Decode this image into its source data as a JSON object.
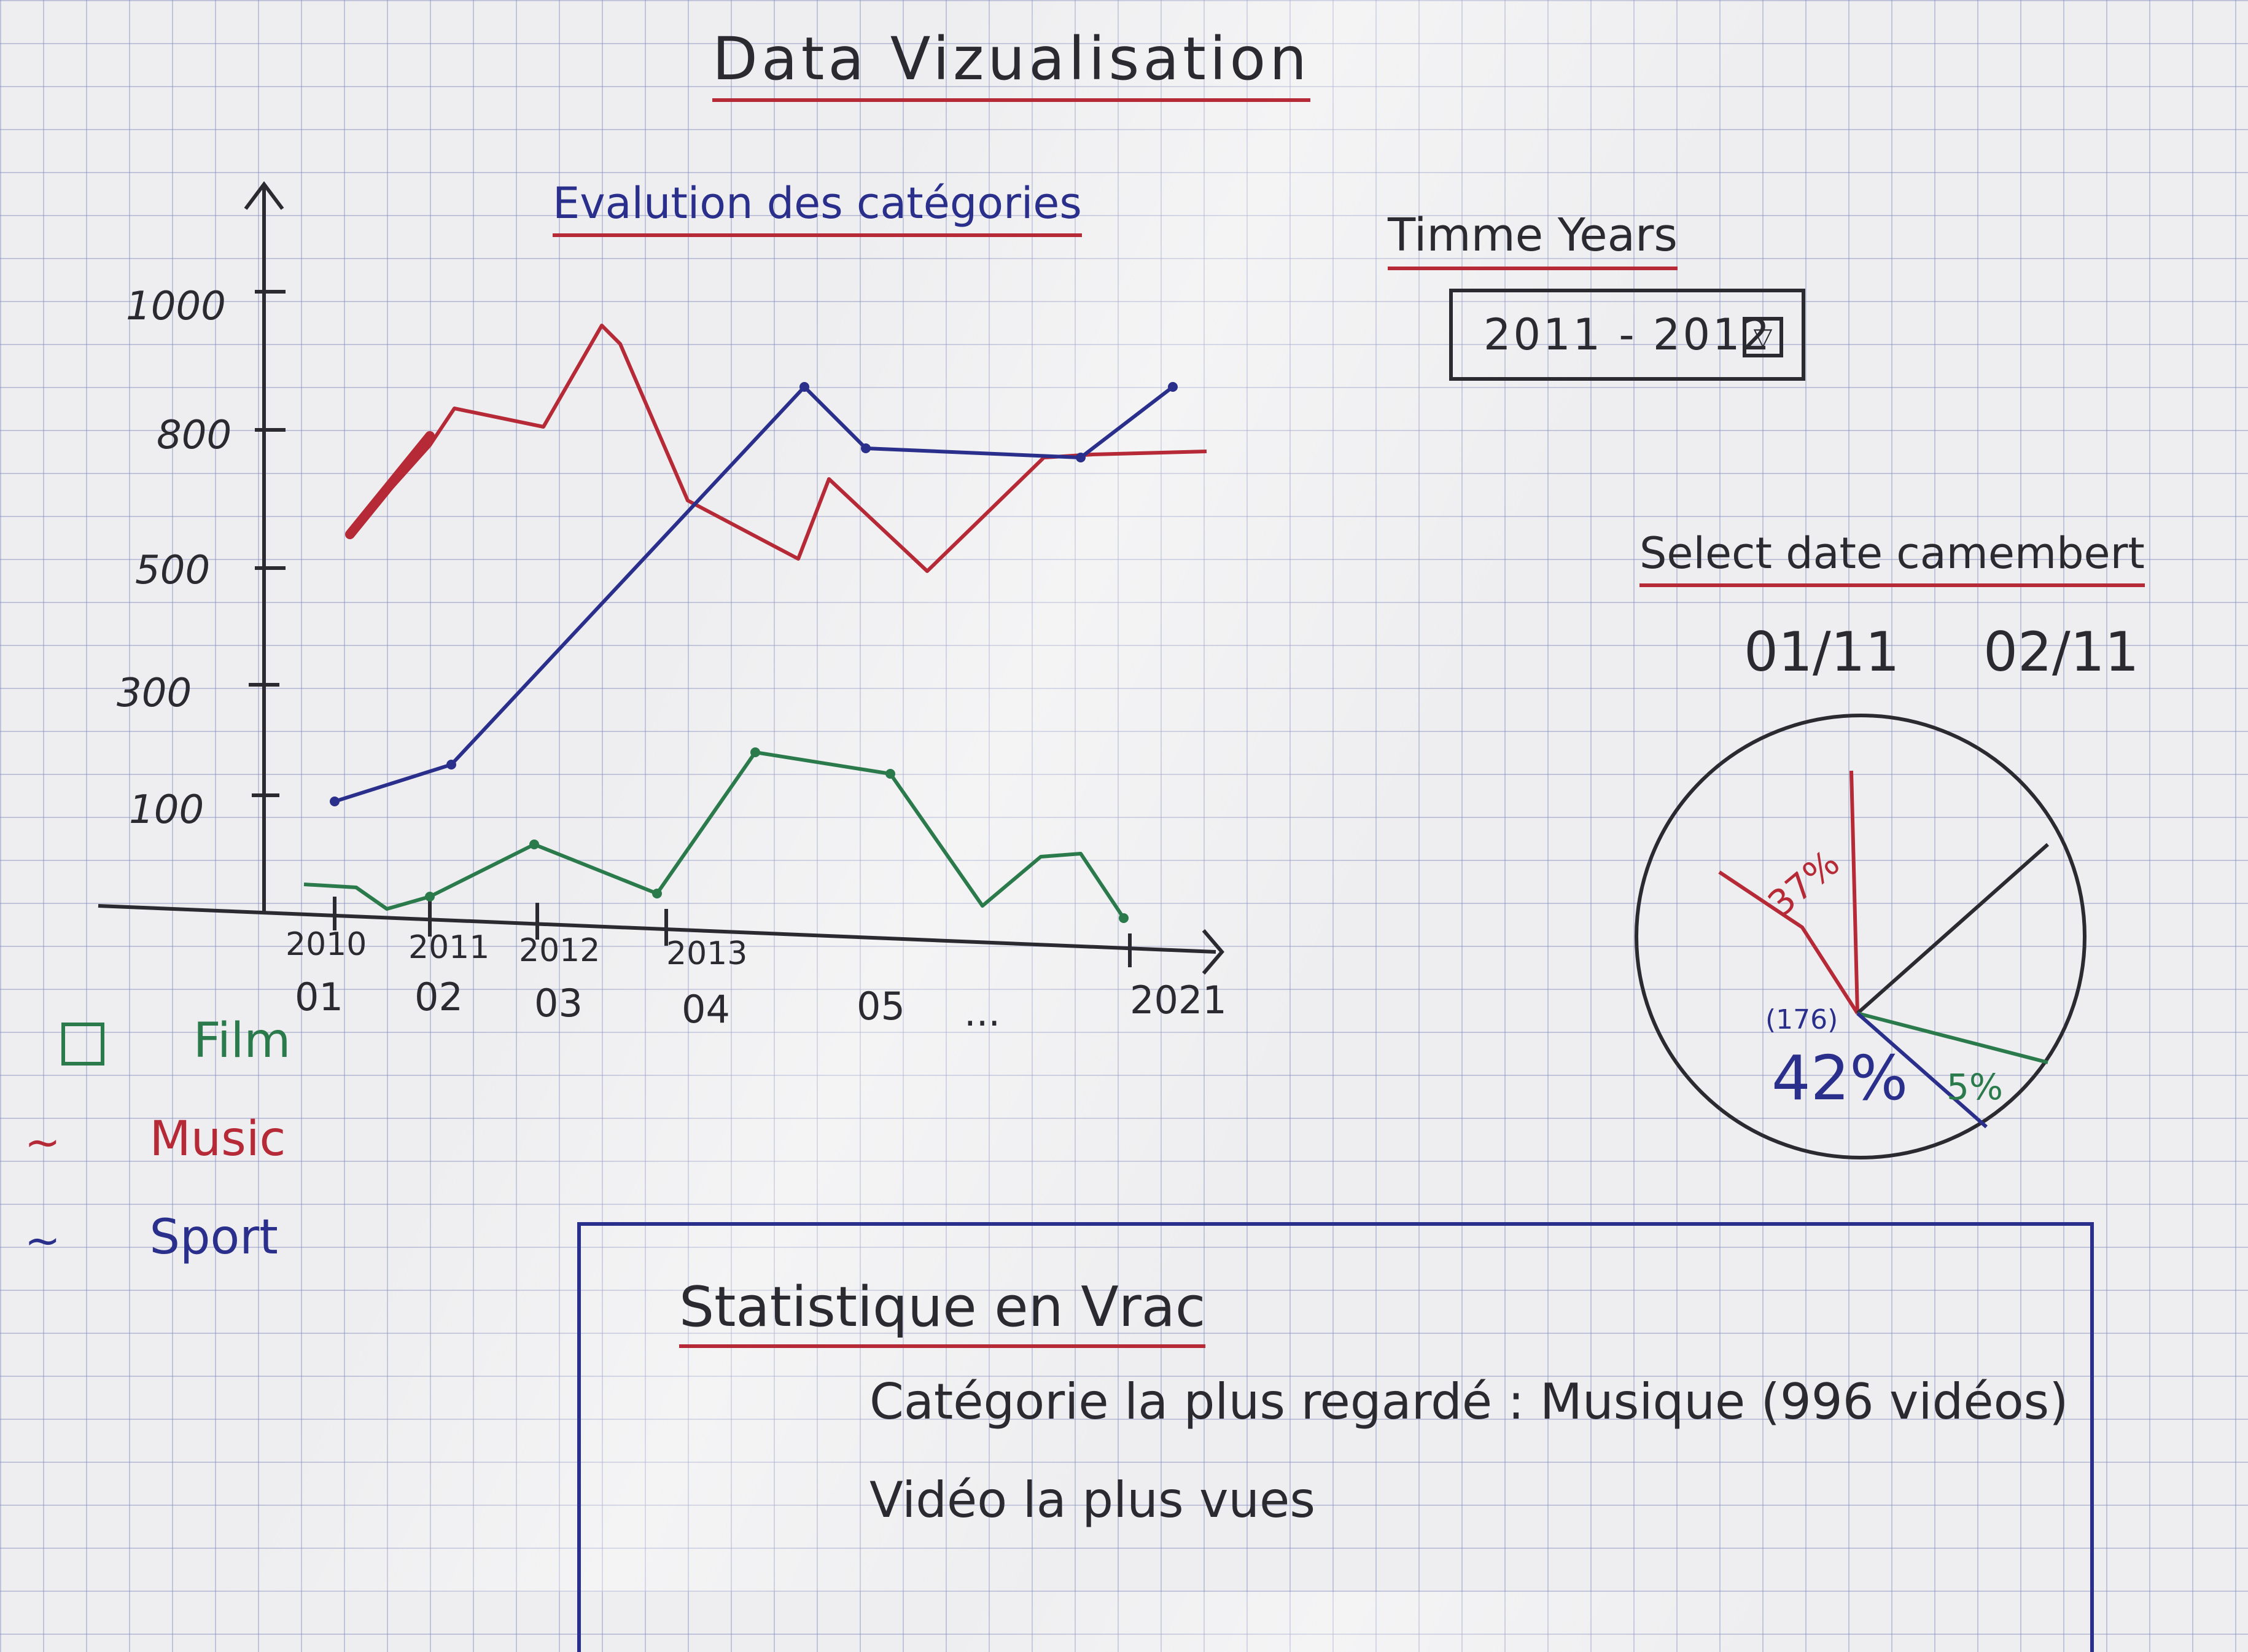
{
  "header": {
    "title": "Data Vizualisation"
  },
  "line_chart": {
    "title": "Evalution des catégories",
    "y_ticks": [
      "100",
      "300",
      "500",
      "800",
      "1000"
    ],
    "x_ticks": [
      {
        "top": "2010",
        "bottom": "01"
      },
      {
        "top": "2011",
        "bottom": "02"
      },
      {
        "top": "2012",
        "bottom": "03"
      },
      {
        "top": "2013",
        "bottom": "04"
      },
      {
        "top": "",
        "bottom": "05"
      },
      {
        "top": "",
        "bottom": "..."
      },
      {
        "top": "",
        "bottom": "2021"
      }
    ],
    "colors": {
      "film": "#2b7a4b",
      "music": "#b52a36",
      "sport": "#2b2f8c"
    }
  },
  "legend": [
    {
      "icon": "square-swatch-icon",
      "label": "Film",
      "color": "#2b7a4b"
    },
    {
      "icon": "wave-swatch-icon",
      "label": "Music",
      "color": "#b52a36"
    },
    {
      "icon": "wave-swatch-icon",
      "label": "Sport",
      "color": "#2b2f8c"
    }
  ],
  "time_filter": {
    "label": "Timme Years",
    "value": "2011 - 2012"
  },
  "camembert": {
    "label": "Select date camembert",
    "dates": [
      "01/11",
      "02/11"
    ],
    "slice_labels": {
      "red": "37%",
      "blue_count": "(176)",
      "blue": "42%",
      "green": "5%"
    }
  },
  "stats": {
    "title": "Statistique en Vrac",
    "lines": [
      "Catégorie la plus regardé : Musique (996 vidéos)",
      "Vidéo la plus vues"
    ]
  }
}
